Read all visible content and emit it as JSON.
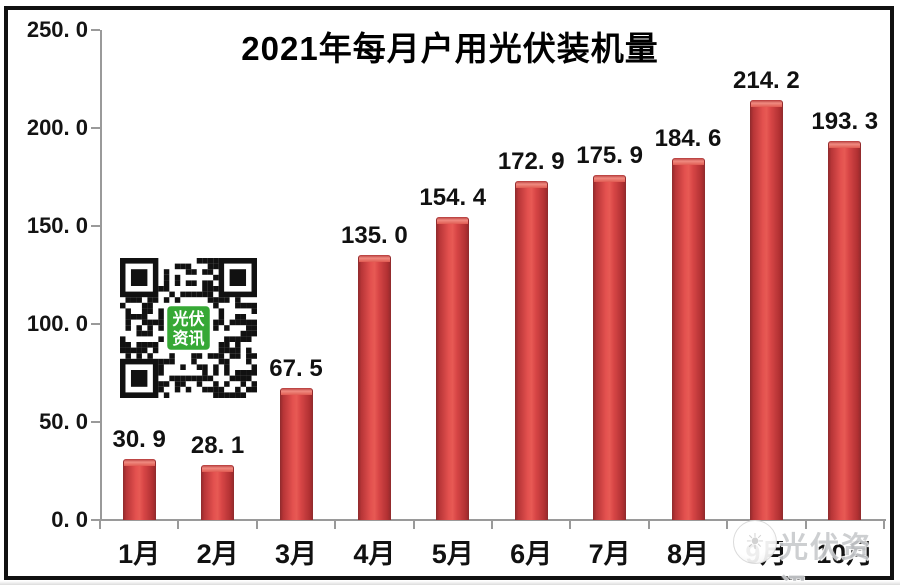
{
  "chart_data": {
    "type": "bar",
    "title": "2021年每月户用光伏装机量",
    "categories": [
      "1月",
      "2月",
      "3月",
      "4月",
      "5月",
      "6月",
      "7月",
      "8月",
      "9月",
      "10月"
    ],
    "values": [
      30.9,
      28.1,
      67.5,
      135.0,
      154.4,
      172.9,
      175.9,
      184.6,
      214.2,
      193.3
    ],
    "value_labels": [
      "30. 9",
      "28. 1",
      "67. 5",
      "135. 0",
      "154. 4",
      "172. 9",
      "175. 9",
      "184. 6",
      "214. 2",
      "193. 3"
    ],
    "xlabel": "",
    "ylabel": "",
    "ylim": [
      0,
      250
    ],
    "ytick_step": 50,
    "ytick_values": [
      250,
      200,
      150,
      100,
      50,
      0
    ],
    "ytick_labels": [
      "250. 0",
      "200. 0",
      "150. 0",
      "100. 0",
      "50. 0",
      "0. 0"
    ],
    "grid": false,
    "legend_position": "none",
    "bar_color": "#d84545",
    "bar_edge_color": "#8e2a2c",
    "axis_color": "#9a9a9a",
    "label_color": "#111111"
  },
  "qr": {
    "badge_line1": "光伏",
    "badge_line2": "资讯",
    "badge_color": "#36a835"
  },
  "watermark": {
    "text": "光伏资讯",
    "logo_glyph": "☀"
  }
}
